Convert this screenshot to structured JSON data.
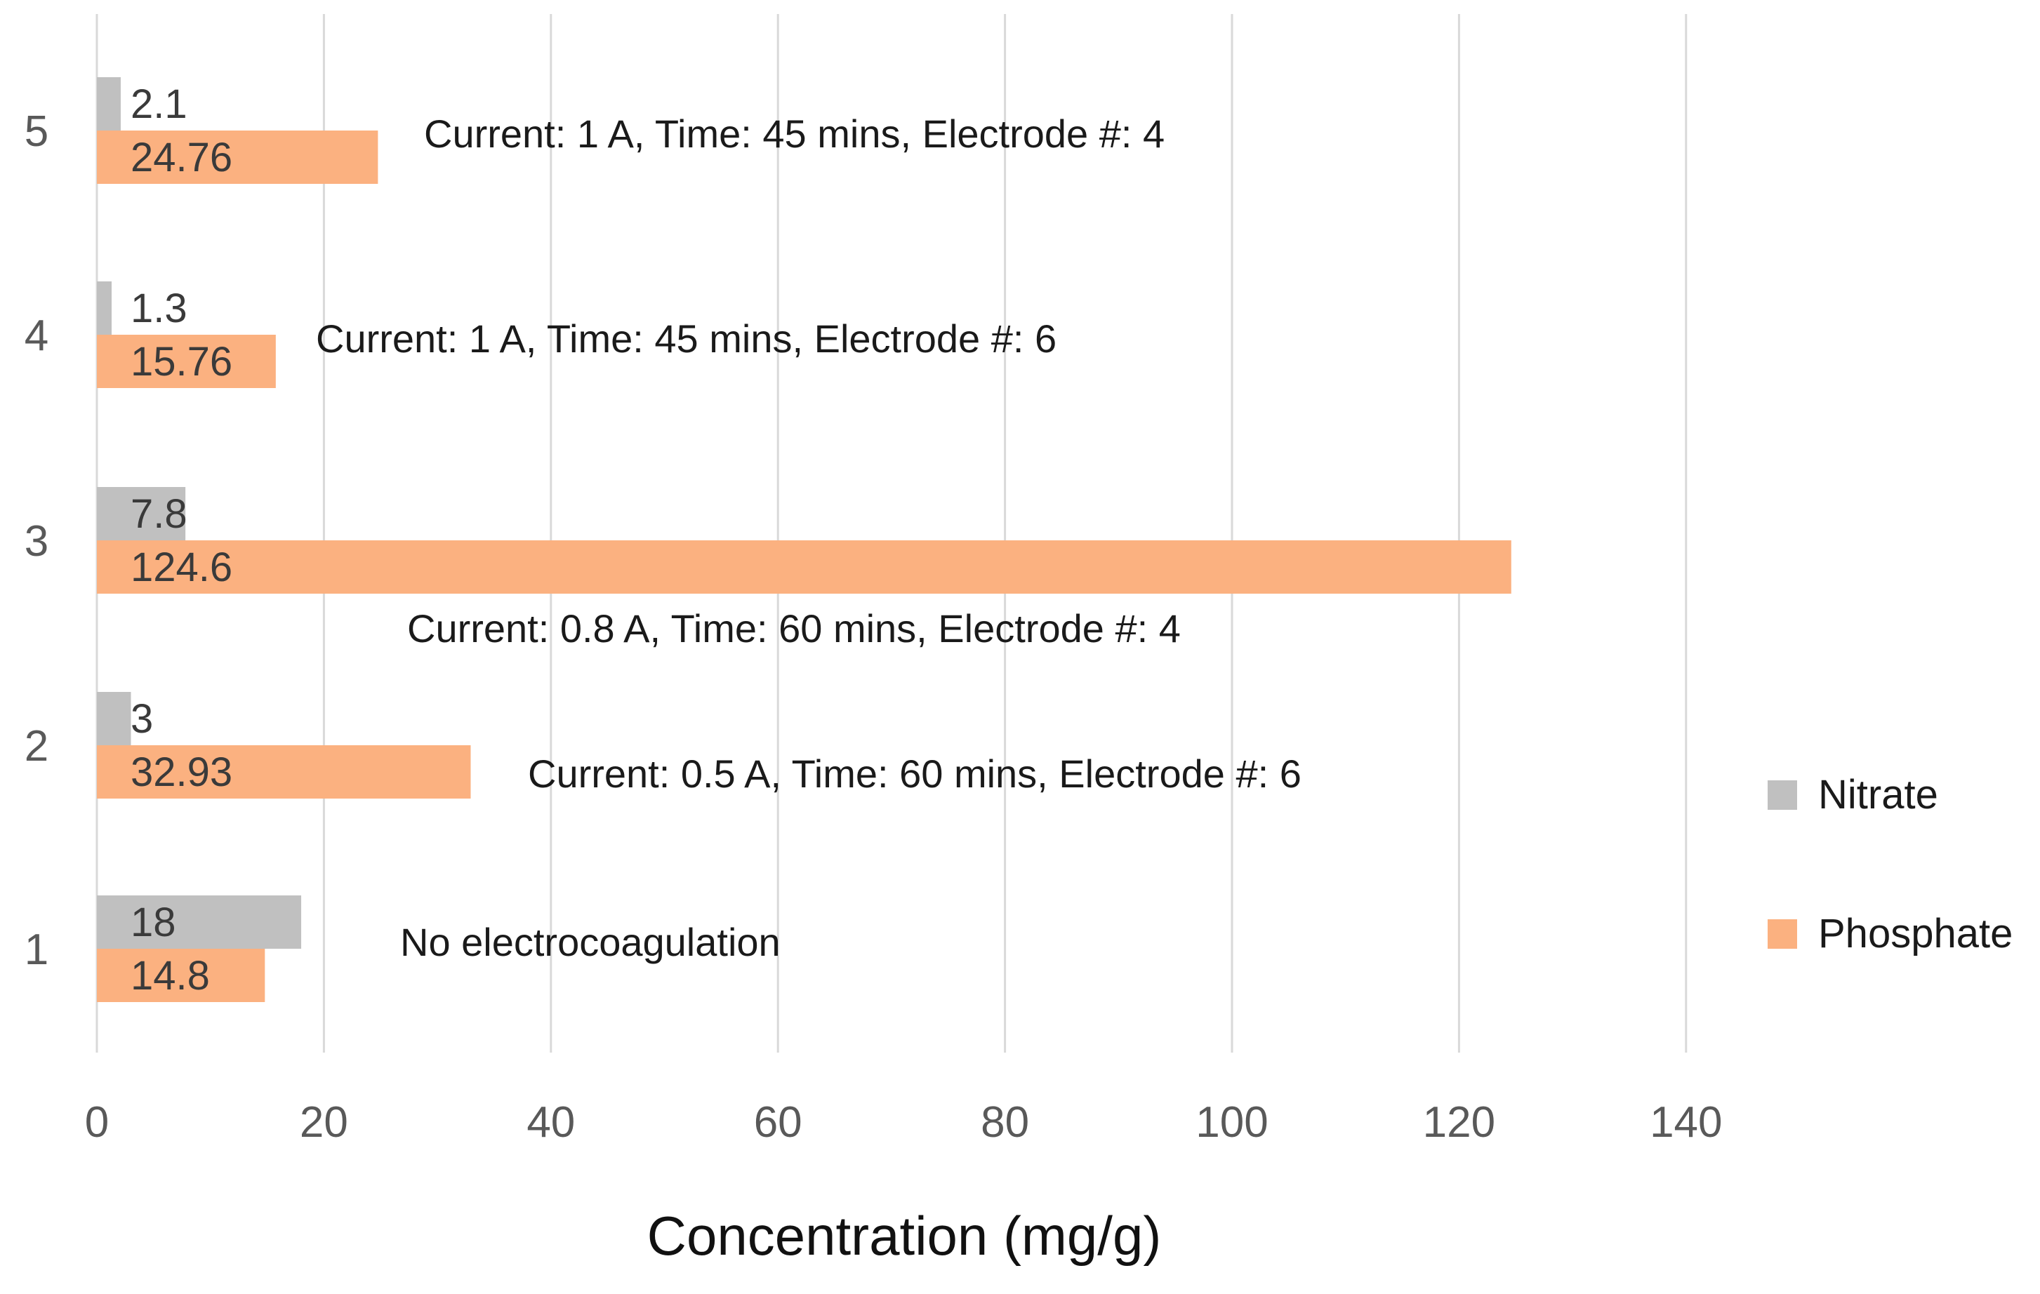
{
  "chart_data": {
    "type": "bar",
    "orientation": "horizontal",
    "title": "",
    "xlabel": "Concentration (mg/g)",
    "ylabel": "",
    "xlim": [
      0,
      140
    ],
    "x_ticks": [
      0,
      20,
      40,
      60,
      80,
      100,
      120,
      140
    ],
    "grid": true,
    "legend_position": "right",
    "categories": [
      "1",
      "2",
      "3",
      "4",
      "5"
    ],
    "series": [
      {
        "name": "Nitrate",
        "color": "#c0c0c0",
        "values": [
          18,
          3,
          7.8,
          1.3,
          2.1
        ],
        "labels": [
          "18",
          "3",
          "7.8",
          "1.3",
          "2.1"
        ]
      },
      {
        "name": "Phosphate",
        "color": "#fbb180",
        "values": [
          14.8,
          32.93,
          124.6,
          15.76,
          24.76
        ],
        "labels": [
          "14.8",
          "32.93",
          "124.6",
          "15.76",
          "24.76"
        ]
      }
    ],
    "annotations": [
      {
        "category": "1",
        "text": "No electrocoagulation"
      },
      {
        "category": "2",
        "text": "Current: 0.5 A, Time: 60 mins, Electrode #: 6"
      },
      {
        "category": "3",
        "text": "Current: 0.8 A, Time: 60 mins, Electrode #: 4"
      },
      {
        "category": "4",
        "text": "Current: 1 A, Time: 45 mins, Electrode #: 6"
      },
      {
        "category": "5",
        "text": "Current: 1 A, Time: 45 mins, Electrode #: 4"
      }
    ]
  }
}
